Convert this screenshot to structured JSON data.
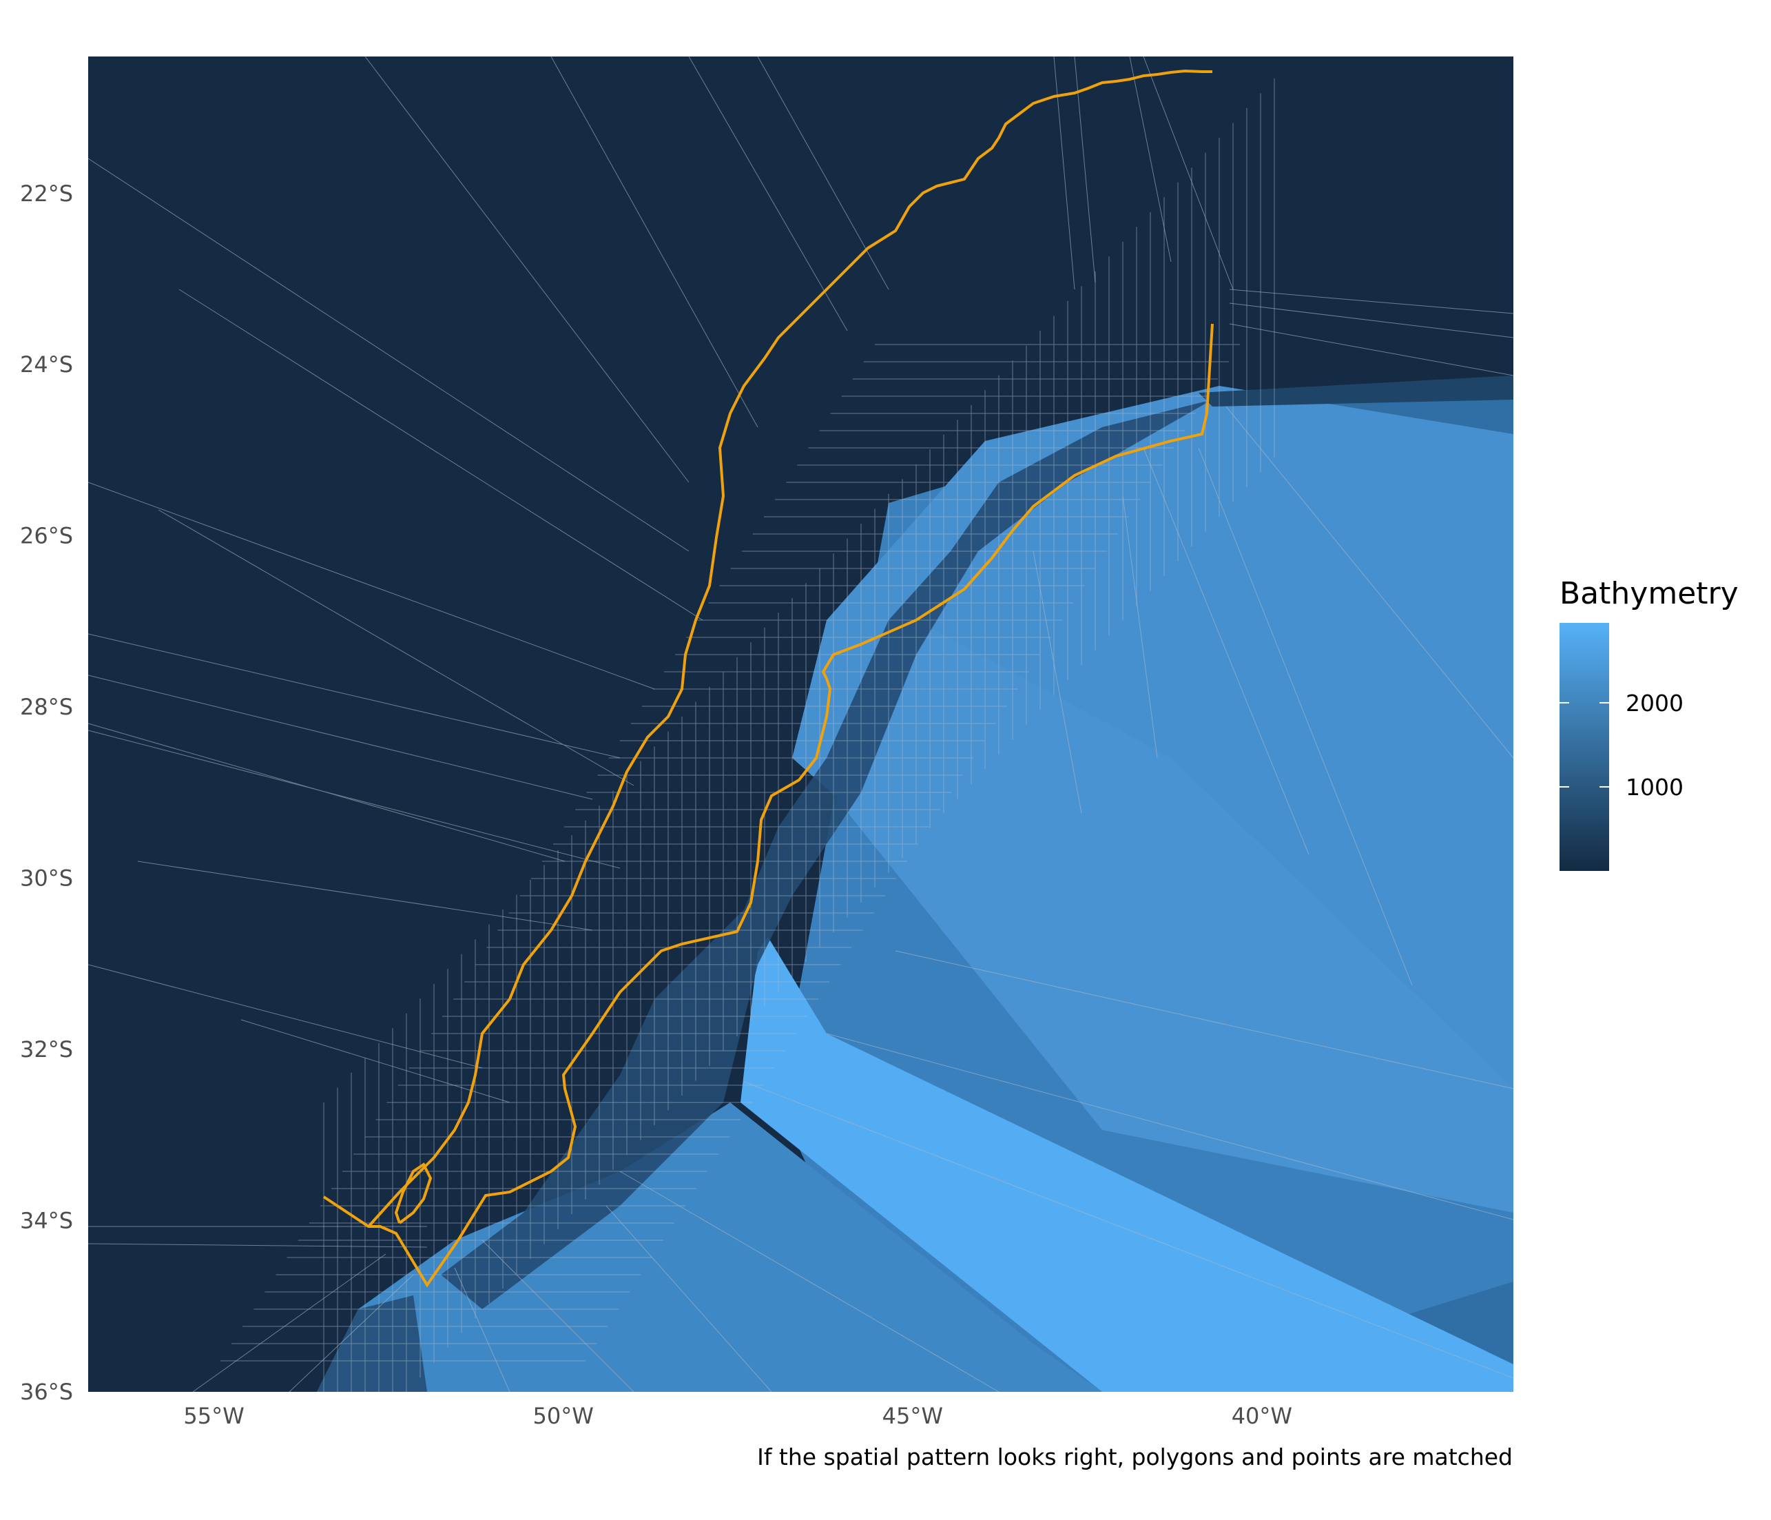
{
  "map": {
    "caption": "If the spatial pattern looks right, polygons and points are matched",
    "y_axis_ticks": [
      {
        "label": "22°S",
        "lat": -22
      },
      {
        "label": "24°S",
        "lat": -24
      },
      {
        "label": "26°S",
        "lat": -26
      },
      {
        "label": "28°S",
        "lat": -28
      },
      {
        "label": "30°S",
        "lat": -30
      },
      {
        "label": "32°S",
        "lat": -32
      },
      {
        "label": "34°S",
        "lat": -34
      },
      {
        "label": "36°S",
        "lat": -36
      }
    ],
    "x_axis_ticks": [
      {
        "label": "55°W",
        "lon": -55
      },
      {
        "label": "50°W",
        "lon": -50
      },
      {
        "label": "45°W",
        "lon": -45
      },
      {
        "label": "40°W",
        "lon": -40
      }
    ],
    "extent": {
      "lon_min": -56.8,
      "lon_max": -36.4,
      "lat_min": -36.0,
      "lat_max": -20.4
    },
    "colors": {
      "land_dark": "#152a43",
      "mid_blue": "#2a5f8c",
      "deep_blue": "#3f87c4",
      "light_blue": "#54acf2",
      "polygon_line": "#a9b9c9",
      "transect": "#f0a20c"
    },
    "legend": {
      "title": "Bathymetry",
      "ticks": [
        {
          "label": "2000",
          "value": 2000
        },
        {
          "label": "1000",
          "value": 1000
        }
      ],
      "range": [
        0,
        2950
      ],
      "gradient": [
        "#132b43",
        "#56b1f7"
      ]
    }
  }
}
